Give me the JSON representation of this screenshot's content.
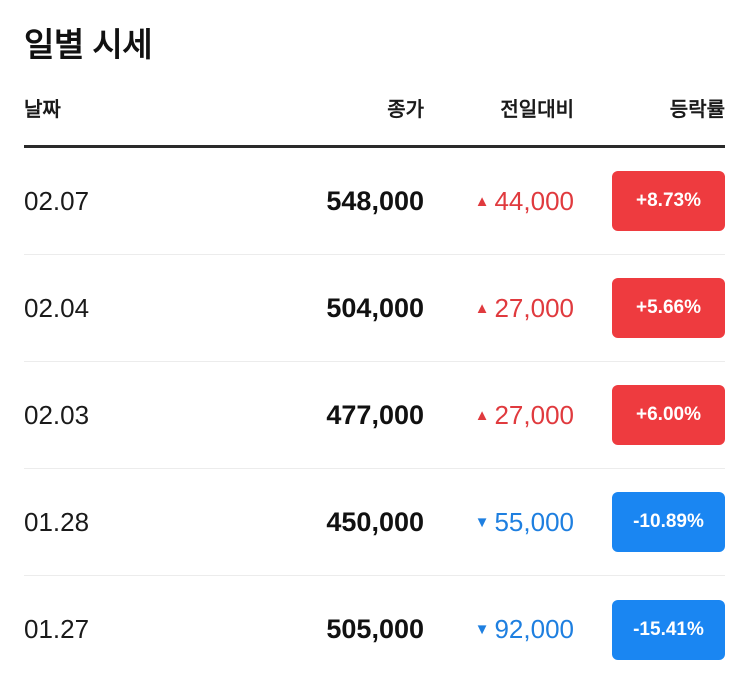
{
  "title": "일별 시세",
  "columns": {
    "date": "날짜",
    "close": "종가",
    "change": "전일대비",
    "rate": "등락률"
  },
  "colors": {
    "up": "#ee3b3f",
    "down": "#1a86f2",
    "up_text": "#e03a3e",
    "down_text": "#1e7fe0"
  },
  "icons": {
    "up": "triangle-up-icon",
    "down": "triangle-down-icon"
  },
  "rows": [
    {
      "date": "02.07",
      "close": "548,000",
      "direction": "up",
      "arrow": "▲",
      "change": "44,000",
      "rate": "+8.73%"
    },
    {
      "date": "02.04",
      "close": "504,000",
      "direction": "up",
      "arrow": "▲",
      "change": "27,000",
      "rate": "+5.66%"
    },
    {
      "date": "02.03",
      "close": "477,000",
      "direction": "up",
      "arrow": "▲",
      "change": "27,000",
      "rate": "+6.00%"
    },
    {
      "date": "01.28",
      "close": "450,000",
      "direction": "down",
      "arrow": "▼",
      "change": "55,000",
      "rate": "-10.89%"
    },
    {
      "date": "01.27",
      "close": "505,000",
      "direction": "down",
      "arrow": "▼",
      "change": "92,000",
      "rate": "-15.41%"
    }
  ]
}
